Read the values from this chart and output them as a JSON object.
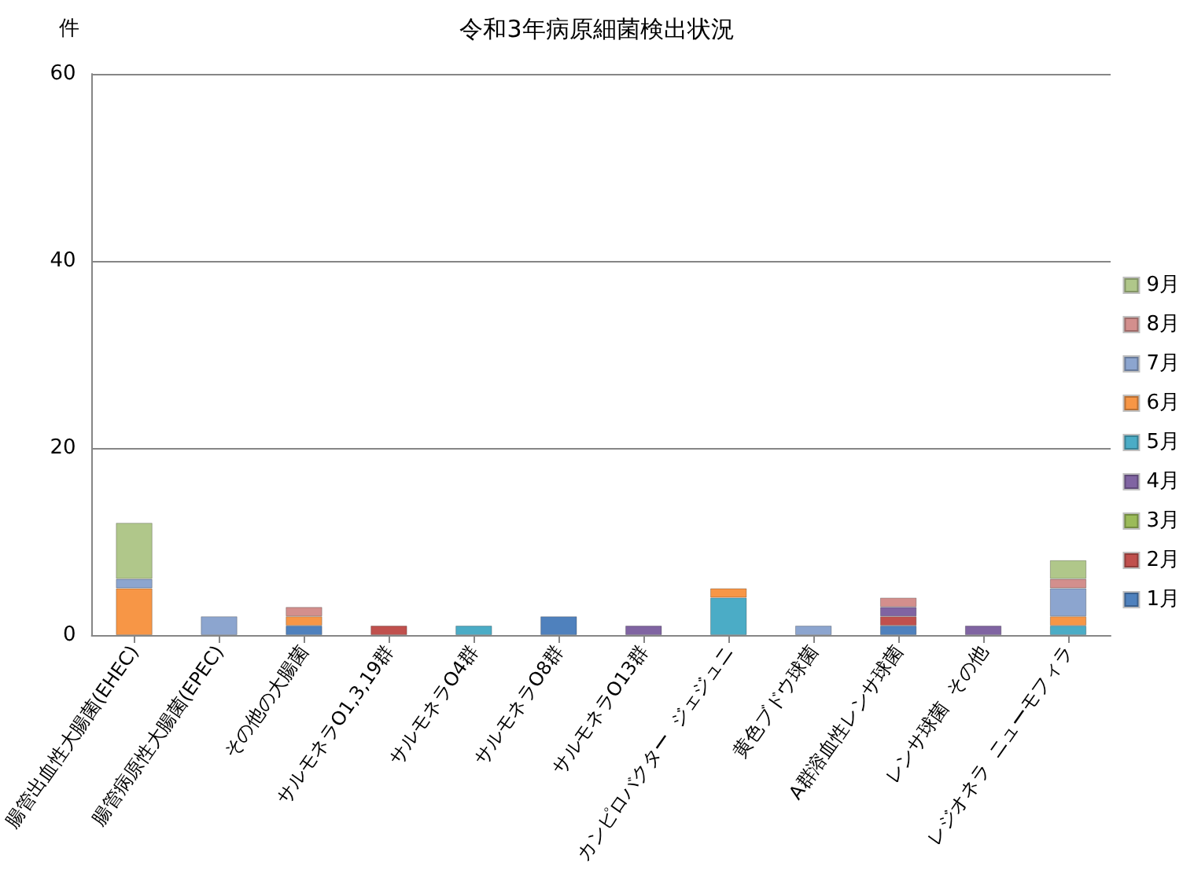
{
  "chart_data": {
    "type": "bar",
    "title": "令和3年病原細菌検出状況",
    "ylabel": "件",
    "categories": [
      "腸管出血性大腸菌(EHEC)",
      "腸管病原性大腸菌(EPEC)",
      "その他の大腸菌",
      "サルモネラO1,3,19群",
      "サルモネラO4群",
      "サルモネラO8群",
      "サルモネラO13群",
      "カンピロバクター  ジェジュニ",
      "黄色ブドウ球菌",
      "A群溶血性レンサ球菌",
      "レンサ球菌  その他",
      "レジオネラ  ニューモフィラ"
    ],
    "series": [
      {
        "name": "1月",
        "color": "#4f81bd",
        "values": [
          null,
          null,
          1,
          null,
          null,
          2,
          null,
          null,
          null,
          1,
          null,
          null
        ]
      },
      {
        "name": "2月",
        "color": "#c0504d",
        "values": [
          null,
          null,
          null,
          1,
          null,
          null,
          null,
          null,
          null,
          1,
          null,
          null
        ]
      },
      {
        "name": "3月",
        "color": "#9bbb59",
        "values": [
          null,
          null,
          null,
          null,
          null,
          null,
          null,
          null,
          null,
          null,
          null,
          null
        ]
      },
      {
        "name": "4月",
        "color": "#8064a2",
        "values": [
          null,
          null,
          null,
          null,
          null,
          null,
          1,
          null,
          null,
          1,
          1,
          null
        ]
      },
      {
        "name": "5月",
        "color": "#4bacc6",
        "values": [
          null,
          null,
          null,
          null,
          1,
          null,
          null,
          4,
          null,
          null,
          null,
          1
        ]
      },
      {
        "name": "6月",
        "color": "#f79646",
        "values": [
          5,
          null,
          1,
          null,
          null,
          null,
          null,
          1,
          null,
          null,
          null,
          1
        ]
      },
      {
        "name": "7月",
        "color": "#8ca5cf",
        "values": [
          1,
          2,
          null,
          null,
          null,
          null,
          null,
          null,
          1,
          null,
          null,
          3
        ]
      },
      {
        "name": "8月",
        "color": "#d38f8d",
        "values": [
          null,
          null,
          1,
          null,
          null,
          null,
          null,
          null,
          null,
          1,
          null,
          1
        ]
      },
      {
        "name": "9月",
        "color": "#b0c78a",
        "values": [
          6,
          null,
          null,
          null,
          null,
          null,
          null,
          null,
          null,
          null,
          null,
          2
        ]
      }
    ],
    "stacked": true,
    "ylim": [
      0,
      60
    ],
    "yticks": [
      0,
      20,
      40,
      60
    ],
    "grid": "y",
    "legend": "right"
  }
}
